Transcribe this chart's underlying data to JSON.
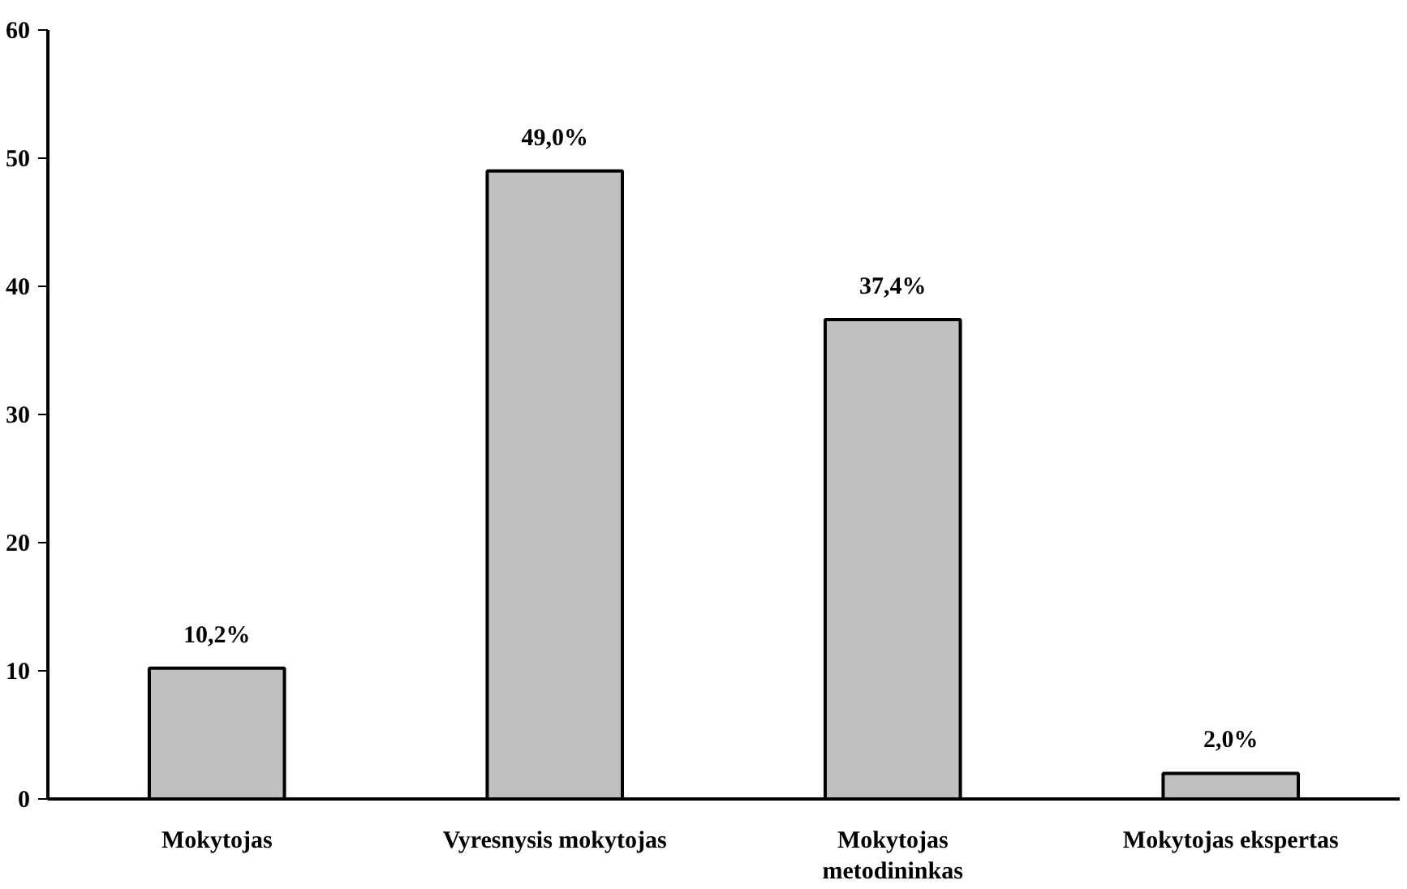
{
  "chart_data": {
    "type": "bar",
    "categories": [
      "Mokytojas",
      "Vyresnysis mokytojas",
      "Mokytojas\nmetodininkas",
      "Mokytojas ekspertas"
    ],
    "values": [
      10.2,
      49.0,
      37.4,
      2.0
    ],
    "value_labels": [
      "10,2%",
      "49,0%",
      "37,4%",
      "2,0%"
    ],
    "color": "#c0c0c0",
    "ylim": [
      0,
      60
    ],
    "yticks": [
      0,
      10,
      20,
      30,
      40,
      50,
      60
    ],
    "grid": false
  }
}
